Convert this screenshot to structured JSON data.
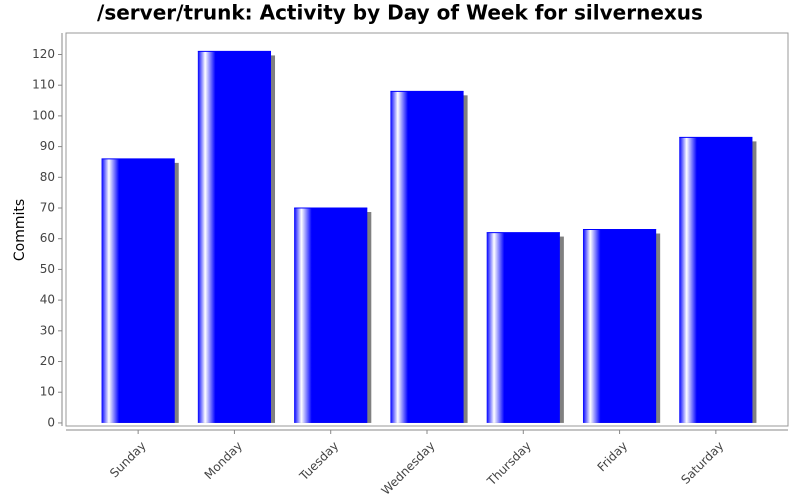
{
  "chart_data": {
    "type": "bar",
    "title": "/server/trunk: Activity by Day of Week for silvernexus",
    "y_label": "Commits",
    "categories": [
      "Sunday",
      "Monday",
      "Tuesday",
      "Wednesday",
      "Thursday",
      "Friday",
      "Saturday"
    ],
    "values": [
      86,
      121,
      70,
      108,
      62,
      63,
      93
    ],
    "color": "#0000ff",
    "ylim": [
      -1,
      127
    ],
    "yticks": [
      0,
      10,
      20,
      30,
      40,
      50,
      60,
      70,
      80,
      90,
      100,
      110,
      120
    ],
    "grid": false
  }
}
